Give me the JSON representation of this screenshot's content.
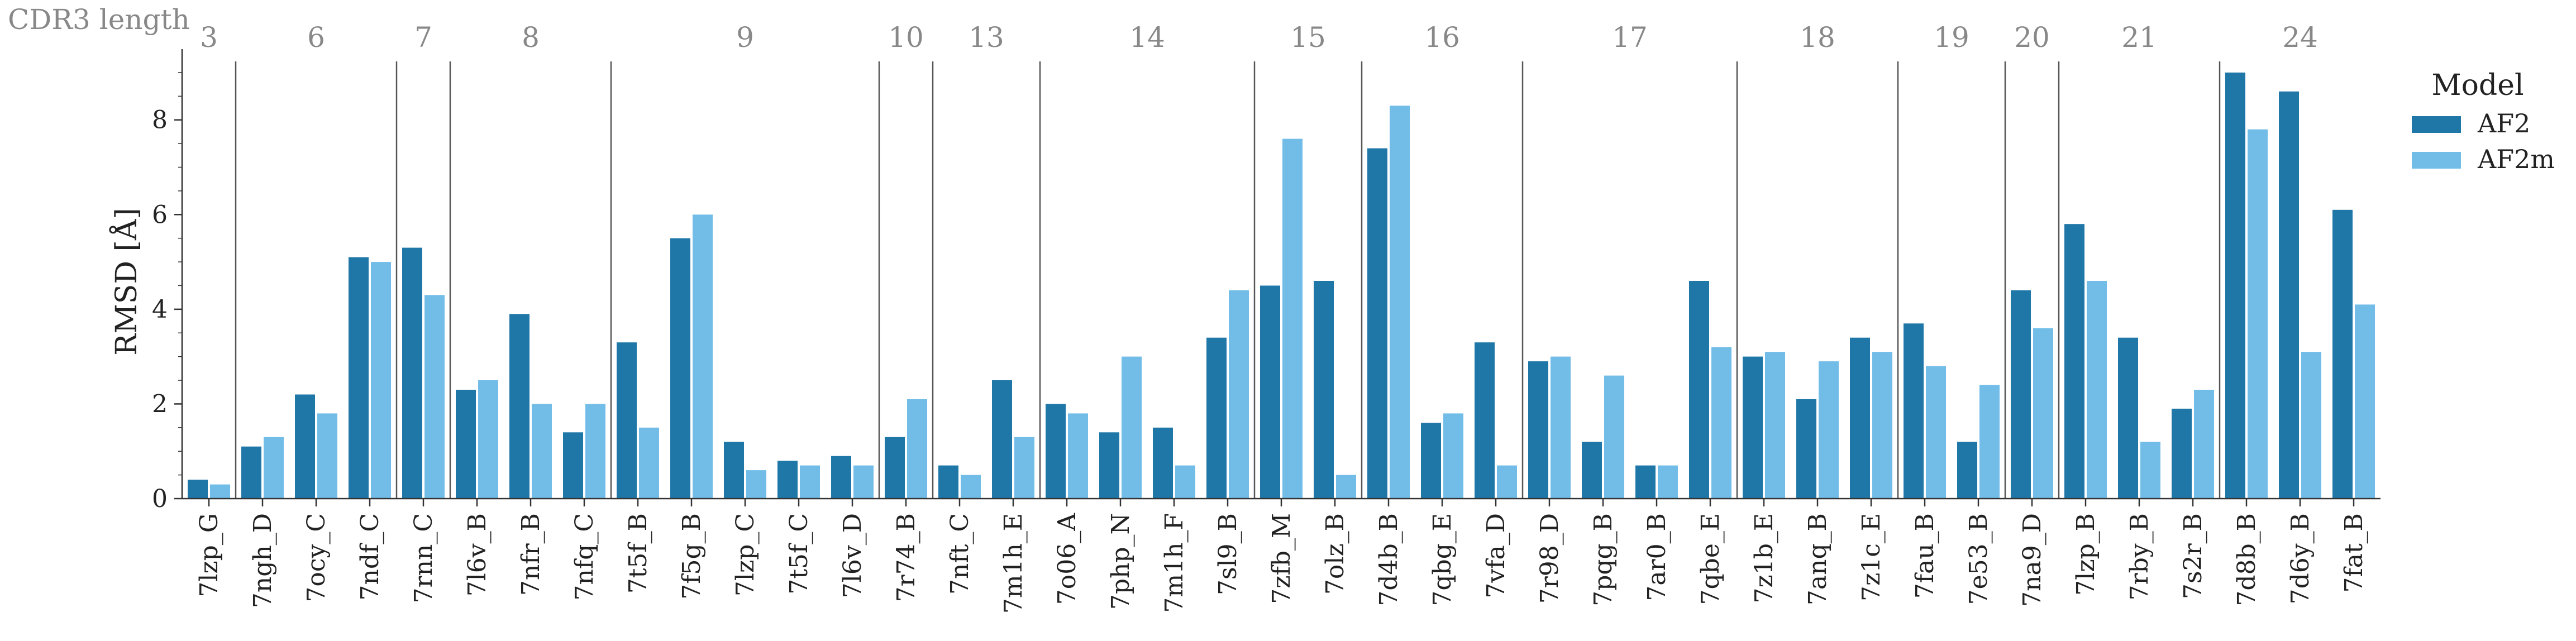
{
  "chart_data": {
    "type": "bar",
    "ylabel": "RMSD [Å]",
    "ylim": [
      0,
      9.4
    ],
    "yticks": [
      0,
      2,
      4,
      6,
      8
    ],
    "grid": false,
    "group_title": "CDR3 length",
    "legend": {
      "title": "Model",
      "position": "top-right",
      "entries": [
        "AF2",
        "AF2m"
      ]
    },
    "colors": {
      "AF2": "#1f77a8",
      "AF2m": "#72bde8"
    },
    "categories": [
      "7lzp_G",
      "7ngh_D",
      "7ocy_C",
      "7ndf_C",
      "7rnn_C",
      "7l6v_B",
      "7nfr_B",
      "7nfq_C",
      "7t5f_B",
      "7f5g_B",
      "7lzp_C",
      "7t5f_C",
      "7l6v_D",
      "7r74_B",
      "7nft_C",
      "7m1h_E",
      "7o06_A",
      "7php_N",
      "7m1h_F",
      "7sl9_B",
      "7zfb_M",
      "7olz_B",
      "7d4b_B",
      "7qbg_E",
      "7vfa_D",
      "7r98_D",
      "7pqg_B",
      "7ar0_B",
      "7qbe_E",
      "7z1b_E",
      "7anq_B",
      "7z1c_E",
      "7fau_B",
      "7e53_B",
      "7na9_D",
      "7lzp_B",
      "7rby_B",
      "7s2r_B",
      "7d8b_B",
      "7d6y_B",
      "7fat_B"
    ],
    "series": [
      {
        "name": "AF2",
        "values": [
          0.4,
          1.1,
          2.2,
          5.1,
          5.3,
          2.3,
          3.9,
          1.4,
          3.3,
          5.5,
          1.2,
          0.8,
          0.9,
          1.3,
          0.7,
          2.5,
          2.0,
          1.4,
          1.5,
          3.4,
          4.5,
          4.6,
          7.4,
          1.6,
          3.3,
          2.9,
          1.2,
          0.7,
          4.6,
          3.0,
          2.1,
          3.4,
          3.7,
          1.2,
          4.4,
          5.8,
          3.4,
          1.9,
          9.0,
          8.6,
          6.1
        ]
      },
      {
        "name": "AF2m",
        "values": [
          0.3,
          1.3,
          1.8,
          5.0,
          4.3,
          2.5,
          2.0,
          2.0,
          1.5,
          6.0,
          0.6,
          0.7,
          0.7,
          2.1,
          0.5,
          1.3,
          1.8,
          3.0,
          0.7,
          4.4,
          7.6,
          0.5,
          8.3,
          1.8,
          0.7,
          3.0,
          2.6,
          0.7,
          3.2,
          3.1,
          2.9,
          3.1,
          2.8,
          2.4,
          3.6,
          4.6,
          1.2,
          2.3,
          7.8,
          3.1,
          4.1
        ]
      }
    ],
    "groups": [
      {
        "label": "3",
        "count": 1
      },
      {
        "label": "6",
        "count": 3
      },
      {
        "label": "7",
        "count": 1
      },
      {
        "label": "8",
        "count": 3
      },
      {
        "label": "9",
        "count": 5
      },
      {
        "label": "10",
        "count": 1
      },
      {
        "label": "13",
        "count": 2
      },
      {
        "label": "14",
        "count": 4
      },
      {
        "label": "15",
        "count": 2
      },
      {
        "label": "16",
        "count": 3
      },
      {
        "label": "17",
        "count": 4
      },
      {
        "label": "18",
        "count": 3
      },
      {
        "label": "19",
        "count": 2
      },
      {
        "label": "20",
        "count": 1
      },
      {
        "label": "21",
        "count": 3
      },
      {
        "label": "24",
        "count": 3
      }
    ]
  }
}
